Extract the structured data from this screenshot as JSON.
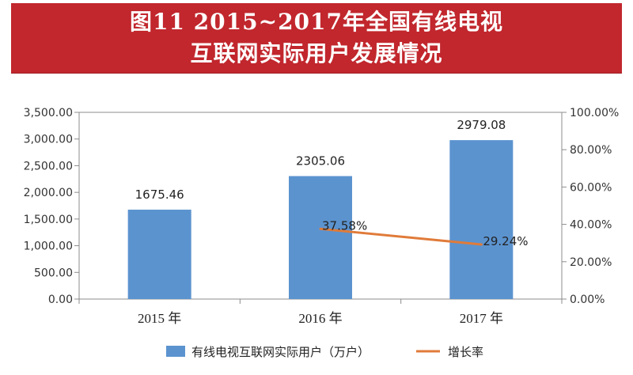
{
  "banner": {
    "line1": "图11  2015~2017年全国有线电视",
    "line2": "互联网实际用户发展情况"
  },
  "colors": {
    "banner": "#c1272d",
    "bar": "#5b93cf",
    "line": "#e07b39"
  },
  "chart_data": {
    "type": "bar",
    "categories": [
      "2015 年",
      "2016 年",
      "2017 年"
    ],
    "series": [
      {
        "name": "有线电视互联网实际用户（万户）",
        "type": "bar",
        "axis": "left",
        "values": [
          1675.46,
          2305.06,
          2979.08
        ],
        "labels": [
          "1675.46",
          "2305.06",
          "2979.08"
        ]
      },
      {
        "name": "增长率",
        "type": "line",
        "axis": "right",
        "values": [
          null,
          37.58,
          29.24
        ],
        "labels": [
          "",
          "37.58%",
          "29.24%"
        ]
      }
    ],
    "y_left": {
      "min": 0,
      "max": 3500,
      "ticks": [
        "0.00",
        "500.00",
        "1,000.00",
        "1,500.00",
        "2,000.00",
        "2,500.00",
        "3,000.00",
        "3,500.00"
      ]
    },
    "y_right": {
      "min": 0,
      "max": 100,
      "ticks": [
        "0.00%",
        "20.00%",
        "40.00%",
        "60.00%",
        "80.00%",
        "100.00%"
      ]
    },
    "legend": {
      "position": "bottom",
      "bar_label": "有线电视互联网实际用户（万户）",
      "line_label": "增长率"
    },
    "grid": false
  }
}
